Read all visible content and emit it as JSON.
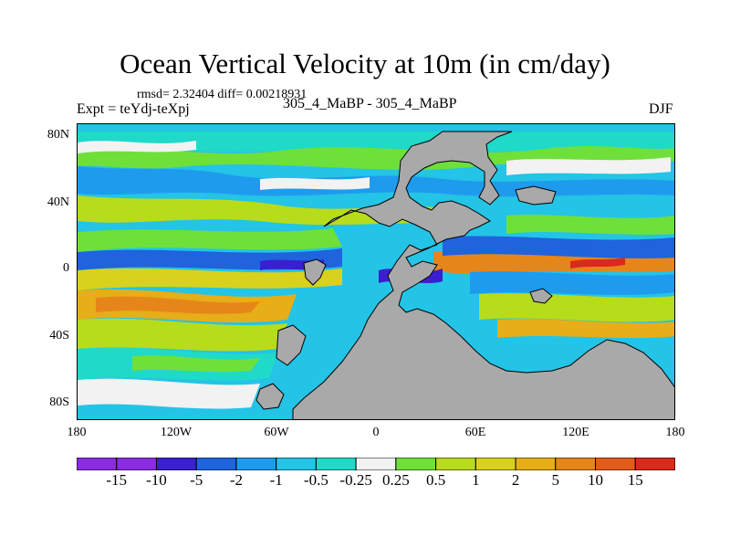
{
  "title": "Ocean Vertical Velocity at 10m (in cm/day)",
  "stats": "rmsd= 2.32404 diff= 0.00218931",
  "left_label": "Expt = teYdj-teXpj",
  "center_label": "305_4_MaBP - 305_4_MaBP",
  "right_label": "DJF",
  "lat_ticks": [
    "80N",
    "40N",
    "0",
    "40S",
    "80S"
  ],
  "lon_ticks": [
    "180",
    "120W",
    "60W",
    "0",
    "60E",
    "120E",
    "180"
  ],
  "colorbar": {
    "colors": [
      "#8b2be2",
      "#3a1fd1",
      "#1f63dd",
      "#1f9bee",
      "#23c4e6",
      "#1fd9c9",
      "#f2f2f2",
      "#6fe03a",
      "#b7dc1c",
      "#d8d21c",
      "#e6ae18",
      "#e6861a",
      "#e25c1c",
      "#d92a1c"
    ],
    "labels": [
      "-15",
      "-10",
      "-5",
      "-2",
      "-1",
      "-0.5",
      "-0.25",
      "0.25",
      "0.5",
      "1",
      "2",
      "5",
      "10",
      "15"
    ]
  },
  "land_color": "#a9a9a9"
}
